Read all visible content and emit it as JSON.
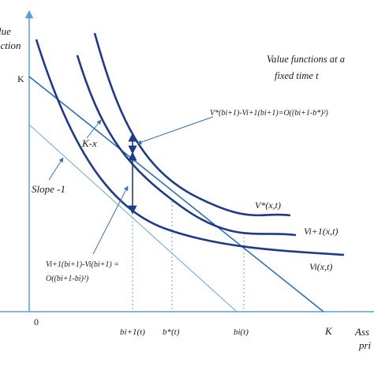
{
  "y_axis_label_line1": "lue",
  "y_axis_label_line2": "nction",
  "x_axis_label_line1": "Ass",
  "x_axis_label_line2": "pri",
  "origin_label": "0",
  "k_left_label": "K",
  "k_bottom_label": "K",
  "title_line1": "Value functions at a",
  "title_line2": "fixed time t",
  "k_minus_x_label": "K-x",
  "slope_label": "Slope -1",
  "annotation_top": "V*(bi+1)-Vi+1(bi+1)=O((bi+1-b*)²)",
  "annotation_left_line1": "Vi+1(bi+1)-Vi(bi+1) =",
  "annotation_left_line2": "O((bi+1-bi)²)",
  "curve_labels": [
    "V*(x,t)",
    "Vi+1(x,t)",
    "Vi(x,t)"
  ],
  "x_ticks": [
    "bi+1(t)",
    "b*(t)",
    "bi(t)"
  ],
  "colors": {
    "curves": "#1f3a8a",
    "axes": "#5aa0d8",
    "guides": "#3b6fb6"
  }
}
